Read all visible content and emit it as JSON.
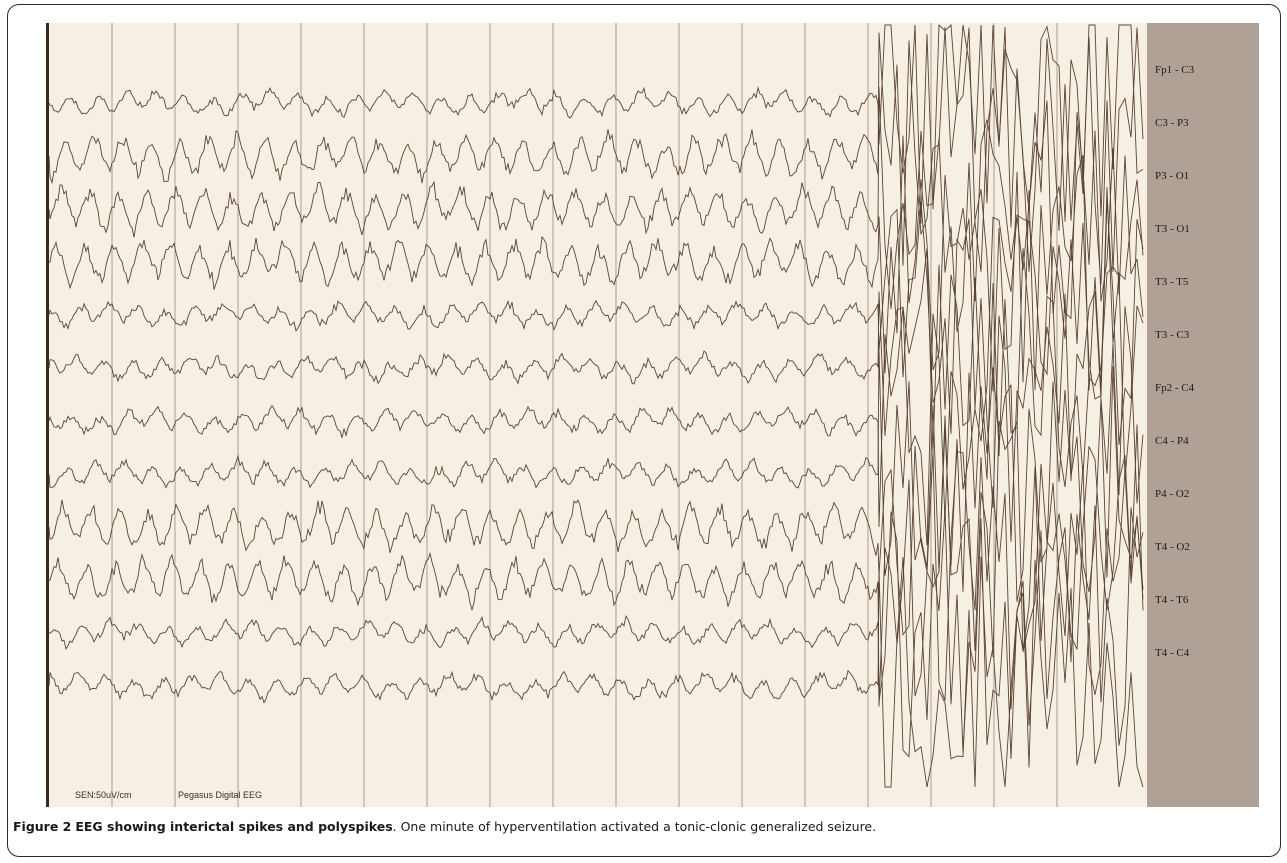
{
  "figure": {
    "label": "Figure 2",
    "title": "EEG showing interictal spikes and polyspikes",
    "caption": ". One minute of hyperventilation activated a tonic-clonic generalized seizure."
  },
  "eeg": {
    "sensitivity": "SEN:50uV/cm",
    "device": "Pegasus Digital EEG",
    "channels": [
      "Fp1 - C3",
      "C3 - P3",
      "P3 - O1",
      "T3 - O1",
      "T3 - T5",
      "T3 - C3",
      "Fp2 - C4",
      "C4 - P4",
      "P4 - O2",
      "T4 - O2",
      "T4 - T6",
      "T4 - C4"
    ],
    "colors": {
      "paper": "#f6efe4",
      "trace": "#5a4434",
      "grid": "#9a8a7a",
      "margin": "#b0a196"
    }
  }
}
